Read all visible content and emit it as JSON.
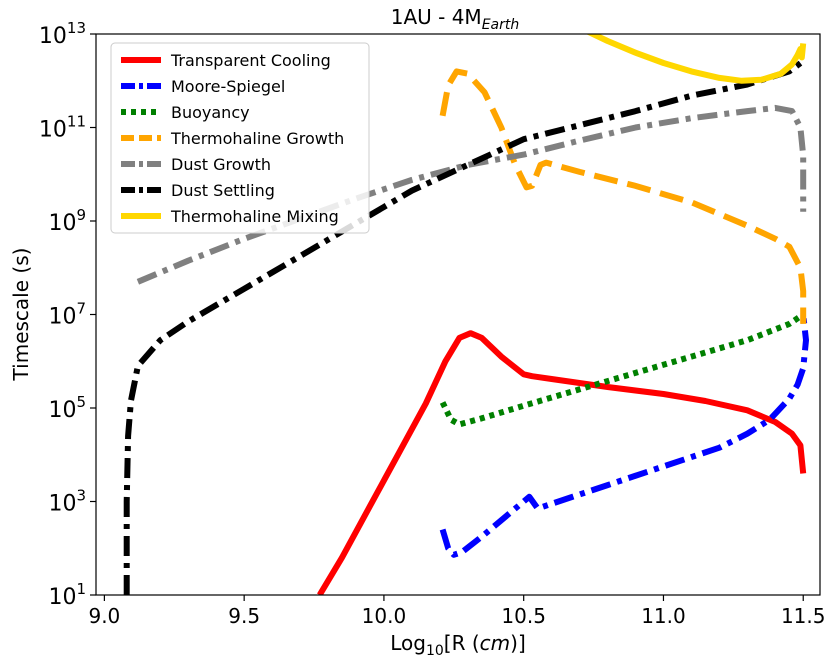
{
  "chart_data": {
    "type": "line",
    "title_main": "1AU - 4M",
    "title_sub": "Earth",
    "xlabel_pre": "Log",
    "xlabel_sub": "10",
    "xlabel_mid": "[R (",
    "xlabel_ital": "cm",
    "xlabel_post": ")]",
    "ylabel": "Timescale (s)",
    "xlim": [
      8.97,
      11.56
    ],
    "ylim_log10": [
      1,
      13
    ],
    "y_scale": "log",
    "x_ticks": [
      {
        "value": 9.0,
        "label": "9.0"
      },
      {
        "value": 9.5,
        "label": "9.5"
      },
      {
        "value": 10.0,
        "label": "10.0"
      },
      {
        "value": 10.5,
        "label": "10.5"
      },
      {
        "value": 11.0,
        "label": "11.0"
      },
      {
        "value": 11.5,
        "label": "11.5"
      }
    ],
    "y_ticks": [
      {
        "exp": 1,
        "base": "10",
        "sup": "1"
      },
      {
        "exp": 3,
        "base": "10",
        "sup": "3"
      },
      {
        "exp": 5,
        "base": "10",
        "sup": "5"
      },
      {
        "exp": 7,
        "base": "10",
        "sup": "7"
      },
      {
        "exp": 9,
        "base": "10",
        "sup": "9"
      },
      {
        "exp": 11,
        "base": "10",
        "sup": "11"
      },
      {
        "exp": 13,
        "base": "10",
        "sup": "13"
      }
    ],
    "grid": false,
    "legend_position": "top-left",
    "series": [
      {
        "name": "Transparent Cooling",
        "color": "#ff0000",
        "style": "solid",
        "points": [
          [
            9.77,
            1.0
          ],
          [
            9.85,
            1.8
          ],
          [
            9.95,
            2.9
          ],
          [
            10.05,
            4.0
          ],
          [
            10.15,
            5.1
          ],
          [
            10.22,
            6.0
          ],
          [
            10.27,
            6.5
          ],
          [
            10.31,
            6.6
          ],
          [
            10.35,
            6.5
          ],
          [
            10.42,
            6.1
          ],
          [
            10.5,
            5.72
          ],
          [
            10.53,
            5.68
          ],
          [
            10.6,
            5.62
          ],
          [
            10.8,
            5.45
          ],
          [
            11.0,
            5.3
          ],
          [
            11.15,
            5.15
          ],
          [
            11.3,
            4.95
          ],
          [
            11.4,
            4.7
          ],
          [
            11.46,
            4.45
          ],
          [
            11.49,
            4.2
          ],
          [
            11.5,
            3.6
          ]
        ]
      },
      {
        "name": "Moore-Spiegel",
        "color": "#0000ff",
        "style": "dashdot",
        "points": [
          [
            10.21,
            2.4
          ],
          [
            10.23,
            2.0
          ],
          [
            10.25,
            1.86
          ],
          [
            10.28,
            1.92
          ],
          [
            10.35,
            2.25
          ],
          [
            10.45,
            2.75
          ],
          [
            10.52,
            3.1
          ],
          [
            10.55,
            2.85
          ],
          [
            10.6,
            2.95
          ],
          [
            10.8,
            3.35
          ],
          [
            11.0,
            3.75
          ],
          [
            11.2,
            4.15
          ],
          [
            11.3,
            4.45
          ],
          [
            11.38,
            4.75
          ],
          [
            11.45,
            5.2
          ],
          [
            11.48,
            5.5
          ],
          [
            11.5,
            5.85
          ],
          [
            11.51,
            6.45
          ],
          [
            11.5,
            7.0
          ]
        ]
      },
      {
        "name": "Buoyancy",
        "color": "#008000",
        "style": "dotted",
        "points": [
          [
            10.21,
            5.12
          ],
          [
            10.24,
            4.75
          ],
          [
            10.27,
            4.65
          ],
          [
            10.35,
            4.78
          ],
          [
            10.5,
            5.05
          ],
          [
            10.7,
            5.4
          ],
          [
            10.9,
            5.75
          ],
          [
            11.1,
            6.1
          ],
          [
            11.3,
            6.45
          ],
          [
            11.45,
            6.8
          ],
          [
            11.5,
            7.0
          ]
        ]
      },
      {
        "name": "Thermohaline Growth",
        "color": "#ffa500",
        "style": "dashed",
        "points": [
          [
            10.21,
            11.25
          ],
          [
            10.23,
            11.9
          ],
          [
            10.26,
            12.2
          ],
          [
            10.3,
            12.15
          ],
          [
            10.36,
            11.75
          ],
          [
            10.42,
            11.0
          ],
          [
            10.47,
            10.2
          ],
          [
            10.51,
            9.72
          ],
          [
            10.53,
            9.75
          ],
          [
            10.56,
            10.2
          ],
          [
            10.58,
            10.25
          ],
          [
            10.7,
            10.05
          ],
          [
            10.9,
            9.75
          ],
          [
            11.1,
            9.4
          ],
          [
            11.3,
            8.9
          ],
          [
            11.4,
            8.62
          ],
          [
            11.45,
            8.45
          ],
          [
            11.49,
            8.0
          ],
          [
            11.5,
            7.5
          ],
          [
            11.5,
            6.8
          ]
        ]
      },
      {
        "name": "Dust Growth",
        "color": "#808080",
        "style": "dashdot",
        "points": [
          [
            9.12,
            7.7
          ],
          [
            9.3,
            8.15
          ],
          [
            9.5,
            8.62
          ],
          [
            9.7,
            9.05
          ],
          [
            9.9,
            9.48
          ],
          [
            10.1,
            9.88
          ],
          [
            10.3,
            10.2
          ],
          [
            10.5,
            10.42
          ],
          [
            10.7,
            10.72
          ],
          [
            10.9,
            11.0
          ],
          [
            11.1,
            11.2
          ],
          [
            11.3,
            11.35
          ],
          [
            11.4,
            11.42
          ],
          [
            11.46,
            11.35
          ],
          [
            11.49,
            11.0
          ],
          [
            11.5,
            10.4
          ],
          [
            11.5,
            9.2
          ]
        ]
      },
      {
        "name": "Dust Settling",
        "color": "#000000",
        "style": "dashdot",
        "points": [
          [
            9.08,
            1.0
          ],
          [
            9.08,
            3.0
          ],
          [
            9.085,
            4.4
          ],
          [
            9.095,
            5.15
          ],
          [
            9.12,
            5.9
          ],
          [
            9.2,
            6.45
          ],
          [
            9.3,
            6.85
          ],
          [
            9.5,
            7.55
          ],
          [
            9.7,
            8.25
          ],
          [
            9.9,
            8.95
          ],
          [
            10.1,
            9.65
          ],
          [
            10.3,
            10.2
          ],
          [
            10.5,
            10.75
          ],
          [
            10.7,
            11.05
          ],
          [
            10.9,
            11.35
          ],
          [
            11.1,
            11.68
          ],
          [
            11.3,
            11.92
          ],
          [
            11.45,
            12.2
          ],
          [
            11.5,
            12.42
          ]
        ]
      },
      {
        "name": "Thermohaline Mixing",
        "color": "#ffd700",
        "style": "solid",
        "points": [
          [
            10.73,
            13.05
          ],
          [
            10.8,
            12.85
          ],
          [
            10.9,
            12.6
          ],
          [
            11.0,
            12.38
          ],
          [
            11.1,
            12.2
          ],
          [
            11.2,
            12.06
          ],
          [
            11.28,
            12.0
          ],
          [
            11.35,
            12.02
          ],
          [
            11.42,
            12.15
          ],
          [
            11.46,
            12.35
          ],
          [
            11.48,
            12.55
          ],
          [
            11.49,
            12.68
          ],
          [
            11.495,
            12.5
          ],
          [
            11.5,
            12.8
          ]
        ]
      }
    ]
  }
}
